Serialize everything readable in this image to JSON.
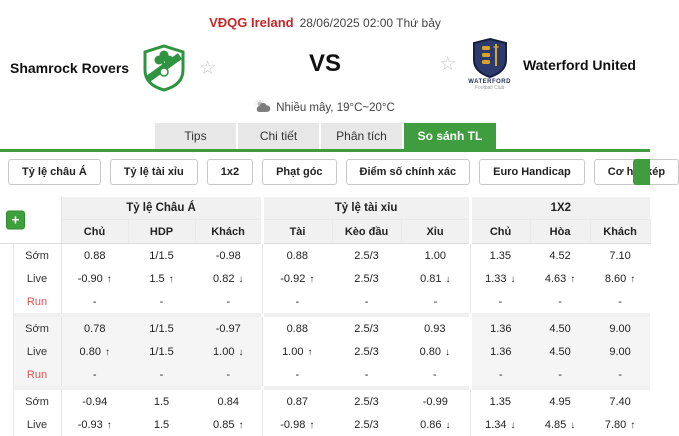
{
  "header": {
    "league": "VĐQG Ireland",
    "kickoff": "28/06/2025 02:00 Thứ bảy",
    "vs": "VS",
    "home": {
      "name": "Shamrock Rovers"
    },
    "away": {
      "name": "Waterford United",
      "logo_caption": "WATERFORD",
      "logo_subcaption": "Football Club"
    },
    "weather": "Nhiều mây, 19°C~20°C"
  },
  "icons": {
    "star": "☆"
  },
  "colors": {
    "accent_green": "#3f9c3f",
    "value_up": "#2f9e32",
    "value_down": "#f04a42",
    "league_red": "#c62828"
  },
  "tabs": [
    {
      "key": "tips",
      "label": "Tips",
      "active": false
    },
    {
      "key": "chi-tiet",
      "label": "Chi tiết",
      "active": false
    },
    {
      "key": "phan-tich",
      "label": "Phân tích",
      "active": false
    },
    {
      "key": "so-sanh-tl",
      "label": "So sánh TL",
      "active": true
    }
  ],
  "filters": [
    {
      "key": "ty-le-chau-a",
      "label": "Tỷ lệ châu Á"
    },
    {
      "key": "ty-le-tai-xiu",
      "label": "Tỷ lệ tài xỉu"
    },
    {
      "key": "1x2",
      "label": "1x2"
    },
    {
      "key": "phat-goc",
      "label": "Phạt góc"
    },
    {
      "key": "diem-so-chinh-xac",
      "label": "Điểm số chính xác"
    },
    {
      "key": "euro-handicap",
      "label": "Euro Handicap"
    },
    {
      "key": "co-hoi-kep",
      "label": "Cơ hội kép"
    }
  ],
  "table": {
    "add_button": "+",
    "arrows": {
      "up": "↑",
      "down": "↓"
    },
    "striped_block_index": 1,
    "groups": [
      "Tỷ lệ Châu Á",
      "Tỷ lệ tài xỉu",
      "1X2"
    ],
    "columns": [
      "Chủ",
      "HDP",
      "Khách",
      "Tài",
      "Kèo đầu",
      "Xỉu",
      "Chủ",
      "Hòa",
      "Khách"
    ],
    "blocks": [
      {
        "rows": [
          {
            "label": "Sớm",
            "red": false,
            "cells": [
              {
                "v": "0.88"
              },
              {
                "v": "1/1.5"
              },
              {
                "v": "-0.98"
              },
              {
                "v": "0.88"
              },
              {
                "v": "2.5/3"
              },
              {
                "v": "1.00"
              },
              {
                "v": "1.35"
              },
              {
                "v": "4.52"
              },
              {
                "v": "7.10"
              }
            ]
          },
          {
            "label": "Live",
            "red": false,
            "cells": [
              {
                "v": "-0.90",
                "t": "up"
              },
              {
                "v": "1.5",
                "t": "up"
              },
              {
                "v": "0.82",
                "t": "down"
              },
              {
                "v": "-0.92",
                "t": "up"
              },
              {
                "v": "2.5/3"
              },
              {
                "v": "0.81",
                "t": "down"
              },
              {
                "v": "1.33",
                "t": "down"
              },
              {
                "v": "4.63",
                "t": "up"
              },
              {
                "v": "8.60",
                "t": "up"
              }
            ]
          },
          {
            "label": "Run",
            "red": true,
            "cells": [
              {
                "v": "-"
              },
              {
                "v": "-"
              },
              {
                "v": "-"
              },
              {
                "v": "-"
              },
              {
                "v": "-"
              },
              {
                "v": "-"
              },
              {
                "v": "-"
              },
              {
                "v": "-"
              },
              {
                "v": "-"
              }
            ]
          }
        ]
      },
      {
        "rows": [
          {
            "label": "Sớm",
            "red": false,
            "cells": [
              {
                "v": "0.78"
              },
              {
                "v": "1/1.5"
              },
              {
                "v": "-0.97"
              },
              {
                "v": "0.88"
              },
              {
                "v": "2.5/3"
              },
              {
                "v": "0.93"
              },
              {
                "v": "1.36"
              },
              {
                "v": "4.50"
              },
              {
                "v": "9.00"
              }
            ]
          },
          {
            "label": "Live",
            "red": false,
            "cells": [
              {
                "v": "0.80",
                "t": "up"
              },
              {
                "v": "1/1.5"
              },
              {
                "v": "1.00",
                "t": "down"
              },
              {
                "v": "1.00",
                "t": "up"
              },
              {
                "v": "2.5/3"
              },
              {
                "v": "0.80",
                "t": "down"
              },
              {
                "v": "1.36"
              },
              {
                "v": "4.50"
              },
              {
                "v": "9.00"
              }
            ]
          },
          {
            "label": "Run",
            "red": true,
            "cells": [
              {
                "v": "-"
              },
              {
                "v": "-"
              },
              {
                "v": "-"
              },
              {
                "v": "-"
              },
              {
                "v": "-"
              },
              {
                "v": "-"
              },
              {
                "v": "-"
              },
              {
                "v": "-"
              },
              {
                "v": "-"
              }
            ]
          }
        ]
      },
      {
        "rows": [
          {
            "label": "Sớm",
            "red": false,
            "cells": [
              {
                "v": "-0.94"
              },
              {
                "v": "1.5"
              },
              {
                "v": "0.84"
              },
              {
                "v": "0.87"
              },
              {
                "v": "2.5/3"
              },
              {
                "v": "-0.99"
              },
              {
                "v": "1.35"
              },
              {
                "v": "4.95"
              },
              {
                "v": "7.40"
              }
            ]
          },
          {
            "label": "Live",
            "red": false,
            "cells": [
              {
                "v": "-0.93",
                "t": "up"
              },
              {
                "v": "1.5"
              },
              {
                "v": "0.85",
                "t": "up"
              },
              {
                "v": "-0.98",
                "t": "up"
              },
              {
                "v": "2.5/3"
              },
              {
                "v": "0.86",
                "t": "down"
              },
              {
                "v": "1.34",
                "t": "down"
              },
              {
                "v": "4.85",
                "t": "down"
              },
              {
                "v": "7.80",
                "t": "up"
              }
            ]
          }
        ]
      }
    ]
  }
}
